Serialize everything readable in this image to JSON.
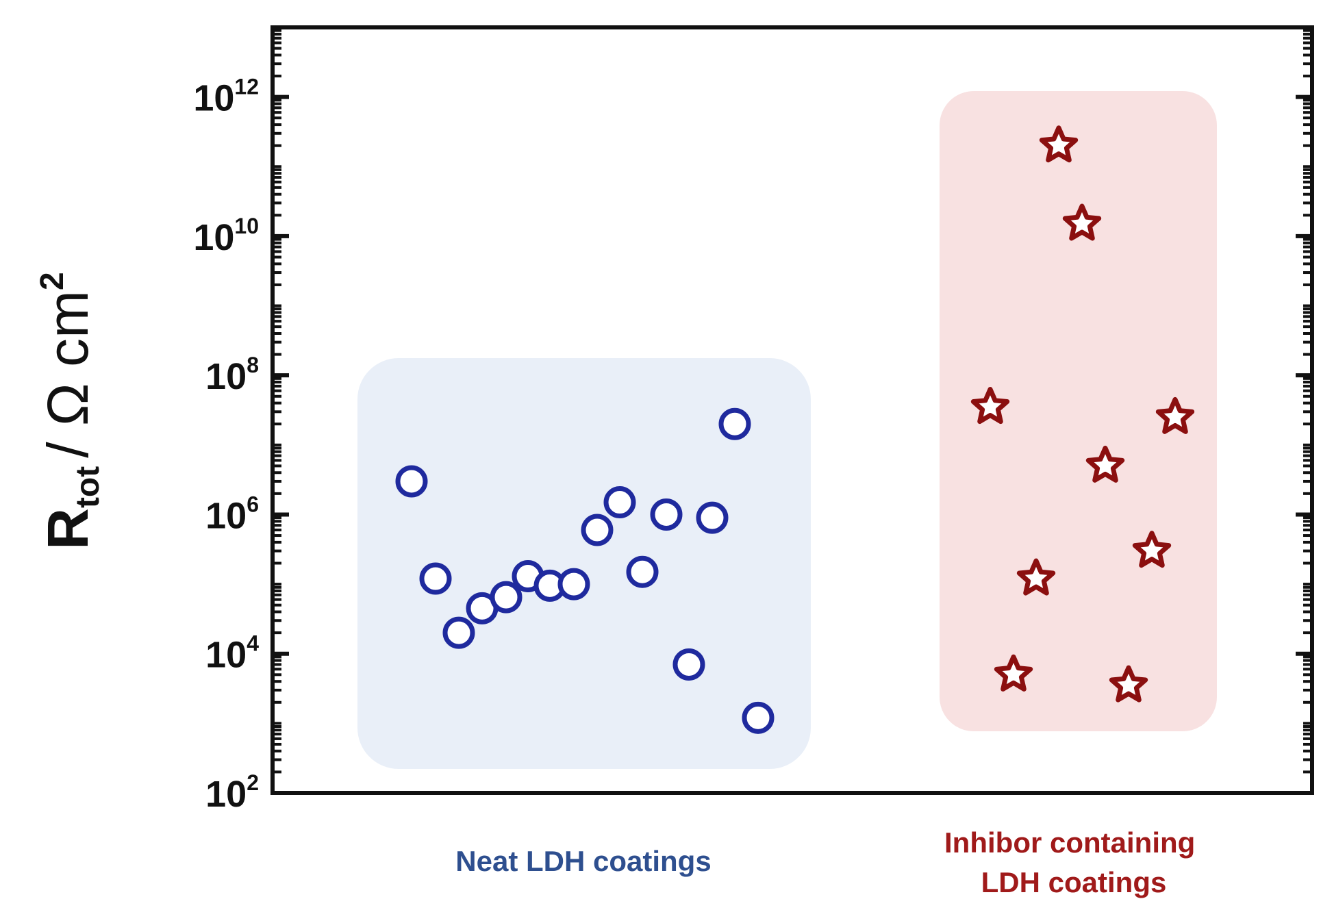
{
  "chart_data": {
    "type": "scatter",
    "title": "",
    "xlabel": "",
    "ylabel": {
      "main": "R",
      "subscript": "tot",
      "unit": "/ Ω cm",
      "superscript": "2"
    },
    "yscale": "log",
    "ylim": [
      100,
      10000000000000.0
    ],
    "y_ticks": [
      {
        "base": "10",
        "exp": "2"
      },
      {
        "base": "10",
        "exp": "4"
      },
      {
        "base": "10",
        "exp": "6"
      },
      {
        "base": "10",
        "exp": "8"
      },
      {
        "base": "10",
        "exp": "10"
      },
      {
        "base": "10",
        "exp": "12"
      }
    ],
    "grid": false,
    "series": [
      {
        "name": "Neat LDH coatings",
        "label_lines": [
          "Neat LDH coatings"
        ],
        "marker": "open-circle",
        "color": "#1f2a9e",
        "label_color": "#2e4f8f",
        "region_color": "#e9eff8",
        "values": [
          3000000,
          120000,
          20000,
          45000,
          65000,
          130000,
          95000,
          100000,
          600000,
          1500000,
          150000,
          1000000,
          7000,
          900000,
          20000000,
          1200
        ]
      },
      {
        "name": "Inhibor containing LDH coatings",
        "label_lines": [
          "Inhibor containing",
          "LDH coatings"
        ],
        "marker": "open-star",
        "color": "#8b0f0f",
        "label_color": "#a01a1a",
        "region_color": "#f8e1e1",
        "values": [
          200000000000,
          15000000000,
          35000000,
          120000,
          5000,
          5000000,
          3500,
          300000,
          25000000
        ]
      }
    ]
  }
}
